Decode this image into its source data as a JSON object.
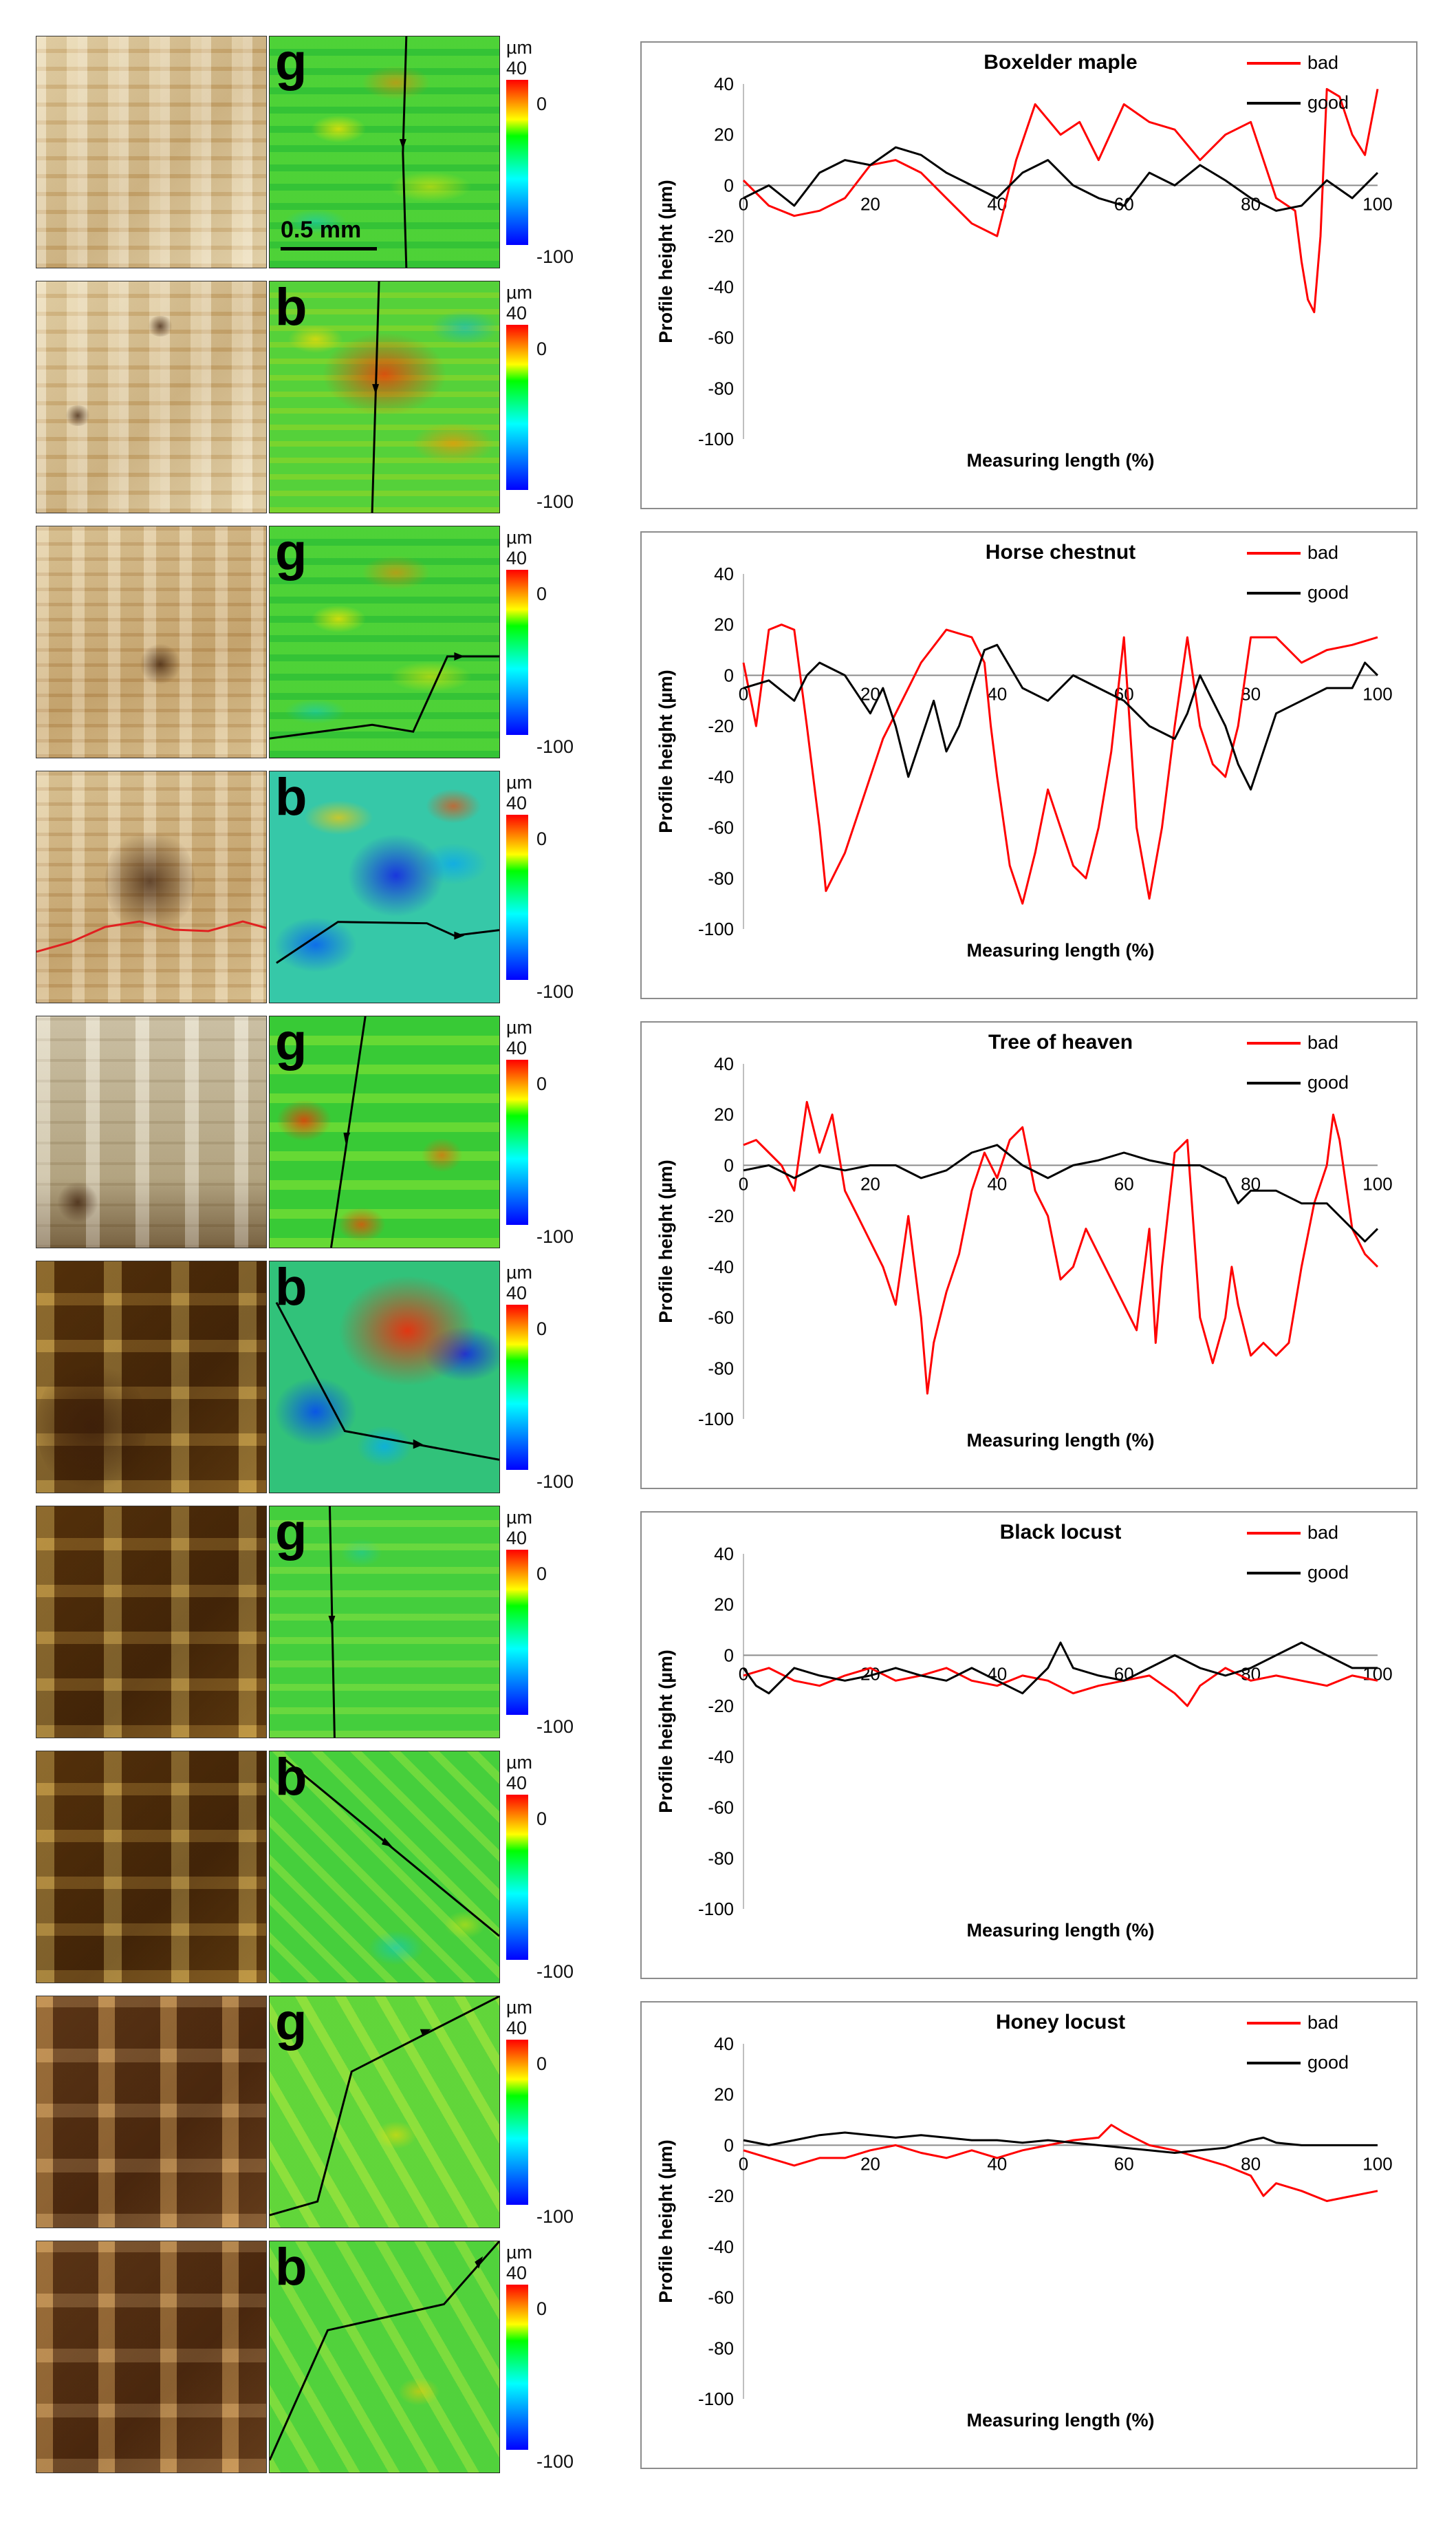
{
  "figure": {
    "scalebar_label": "0.5 mm",
    "colorbar": {
      "unit": "µm",
      "max": "40",
      "zero": "0",
      "min": "-100"
    },
    "panels": [
      {
        "letter": "g"
      },
      {
        "letter": "b"
      },
      {
        "letter": "g"
      },
      {
        "letter": "b"
      },
      {
        "letter": "g"
      },
      {
        "letter": "b"
      },
      {
        "letter": "g"
      },
      {
        "letter": "b"
      },
      {
        "letter": "g"
      },
      {
        "letter": "b"
      }
    ]
  },
  "colors": {
    "bad": "#ff0000",
    "good": "#000000"
  },
  "chart_data": [
    {
      "type": "line",
      "title": "Boxelder maple",
      "xlabel": "Measuring length (%)",
      "ylabel": "Profile height (µm)",
      "xlim": [
        0,
        100
      ],
      "ylim": [
        -100,
        40
      ],
      "xticks": [
        0,
        20,
        40,
        60,
        80,
        100
      ],
      "yticks": [
        40,
        20,
        0,
        -20,
        -40,
        -60,
        -80,
        -100
      ],
      "series": [
        {
          "name": "bad",
          "x": [
            0,
            4,
            8,
            12,
            16,
            20,
            24,
            28,
            32,
            36,
            40,
            43,
            46,
            50,
            53,
            56,
            60,
            64,
            68,
            72,
            76,
            80,
            84,
            87,
            88,
            89,
            90,
            91,
            92,
            94,
            96,
            98,
            100
          ],
          "y": [
            2,
            -8,
            -12,
            -10,
            -5,
            8,
            10,
            5,
            -5,
            -15,
            -20,
            10,
            32,
            20,
            25,
            10,
            32,
            25,
            22,
            10,
            20,
            25,
            -5,
            -10,
            -30,
            -45,
            -50,
            -20,
            38,
            35,
            20,
            12,
            38
          ]
        },
        {
          "name": "good",
          "x": [
            0,
            4,
            8,
            12,
            16,
            20,
            24,
            28,
            32,
            36,
            40,
            44,
            48,
            52,
            56,
            60,
            64,
            68,
            72,
            76,
            80,
            84,
            88,
            92,
            96,
            100
          ],
          "y": [
            -5,
            0,
            -8,
            5,
            10,
            8,
            15,
            12,
            5,
            0,
            -5,
            5,
            10,
            0,
            -5,
            -8,
            5,
            0,
            8,
            2,
            -5,
            -10,
            -8,
            2,
            -5,
            5
          ]
        }
      ]
    },
    {
      "type": "line",
      "title": "Horse chestnut",
      "xlabel": "Measuring length (%)",
      "ylabel": "Profile height (µm)",
      "xlim": [
        0,
        100
      ],
      "ylim": [
        -100,
        40
      ],
      "xticks": [
        0,
        20,
        40,
        60,
        80,
        100
      ],
      "yticks": [
        40,
        20,
        0,
        -20,
        -40,
        -60,
        -80,
        -100
      ],
      "series": [
        {
          "name": "bad",
          "x": [
            0,
            2,
            4,
            6,
            8,
            10,
            12,
            13,
            14,
            16,
            18,
            20,
            22,
            24,
            26,
            28,
            32,
            36,
            38,
            39,
            40,
            42,
            44,
            46,
            48,
            50,
            52,
            54,
            56,
            58,
            60,
            62,
            64,
            66,
            68,
            70,
            72,
            74,
            76,
            78,
            80,
            84,
            88,
            92,
            96,
            100
          ],
          "y": [
            5,
            -20,
            18,
            20,
            18,
            -20,
            -60,
            -85,
            -80,
            -70,
            -55,
            -40,
            -25,
            -15,
            -5,
            5,
            18,
            15,
            5,
            -20,
            -40,
            -75,
            -90,
            -70,
            -45,
            -60,
            -75,
            -80,
            -60,
            -30,
            15,
            -60,
            -88,
            -60,
            -20,
            15,
            -20,
            -35,
            -40,
            -20,
            15,
            15,
            5,
            10,
            12,
            15
          ]
        },
        {
          "name": "good",
          "x": [
            0,
            4,
            8,
            10,
            12,
            16,
            20,
            22,
            24,
            26,
            28,
            30,
            32,
            34,
            36,
            38,
            40,
            44,
            48,
            52,
            56,
            60,
            64,
            68,
            70,
            72,
            76,
            78,
            80,
            82,
            84,
            88,
            92,
            96,
            98,
            100
          ],
          "y": [
            -5,
            -2,
            -10,
            0,
            5,
            0,
            -15,
            -5,
            -20,
            -40,
            -25,
            -10,
            -30,
            -20,
            -5,
            10,
            12,
            -5,
            -10,
            0,
            -5,
            -10,
            -20,
            -25,
            -15,
            0,
            -20,
            -35,
            -45,
            -30,
            -15,
            -10,
            -5,
            -5,
            5,
            0
          ]
        }
      ]
    },
    {
      "type": "line",
      "title": "Tree of heaven",
      "xlabel": "Measuring length (%)",
      "ylabel": "Profile height (µm)",
      "xlim": [
        0,
        100
      ],
      "ylim": [
        -100,
        40
      ],
      "xticks": [
        0,
        20,
        40,
        60,
        80,
        100
      ],
      "yticks": [
        40,
        20,
        0,
        -20,
        -40,
        -60,
        -80,
        -100
      ],
      "series": [
        {
          "name": "bad",
          "x": [
            0,
            2,
            4,
            6,
            8,
            10,
            12,
            14,
            16,
            18,
            20,
            22,
            24,
            26,
            28,
            29,
            30,
            32,
            34,
            36,
            38,
            40,
            42,
            44,
            46,
            48,
            50,
            52,
            54,
            56,
            58,
            60,
            62,
            64,
            65,
            66,
            68,
            70,
            72,
            74,
            76,
            77,
            78,
            80,
            82,
            84,
            86,
            88,
            90,
            92,
            93,
            94,
            96,
            98,
            100
          ],
          "y": [
            8,
            10,
            5,
            0,
            -10,
            25,
            5,
            20,
            -10,
            -20,
            -30,
            -40,
            -55,
            -20,
            -60,
            -90,
            -70,
            -50,
            -35,
            -10,
            5,
            -5,
            10,
            15,
            -10,
            -20,
            -45,
            -40,
            -25,
            -35,
            -45,
            -55,
            -65,
            -25,
            -70,
            -40,
            5,
            10,
            -60,
            -78,
            -60,
            -40,
            -55,
            -75,
            -70,
            -75,
            -70,
            -40,
            -15,
            0,
            20,
            10,
            -25,
            -35,
            -40
          ]
        },
        {
          "name": "good",
          "x": [
            0,
            4,
            8,
            12,
            16,
            20,
            24,
            28,
            32,
            36,
            40,
            44,
            48,
            52,
            56,
            60,
            64,
            68,
            72,
            76,
            78,
            80,
            84,
            88,
            92,
            96,
            98,
            100
          ],
          "y": [
            -2,
            0,
            -5,
            0,
            -2,
            0,
            0,
            -5,
            -2,
            5,
            8,
            0,
            -5,
            0,
            2,
            5,
            2,
            0,
            0,
            -5,
            -15,
            -10,
            -10,
            -15,
            -15,
            -25,
            -30,
            -25
          ]
        }
      ]
    },
    {
      "type": "line",
      "title": "Black locust",
      "xlabel": "Measuring length (%)",
      "ylabel": "Profile height (µm)",
      "xlim": [
        0,
        100
      ],
      "ylim": [
        -100,
        40
      ],
      "xticks": [
        0,
        20,
        40,
        60,
        80,
        100
      ],
      "yticks": [
        40,
        20,
        0,
        -20,
        -40,
        -60,
        -80,
        -100
      ],
      "series": [
        {
          "name": "bad",
          "x": [
            0,
            4,
            8,
            12,
            16,
            20,
            24,
            28,
            32,
            36,
            40,
            44,
            48,
            52,
            56,
            60,
            64,
            68,
            70,
            72,
            76,
            80,
            84,
            88,
            92,
            96,
            100
          ],
          "y": [
            -8,
            -5,
            -10,
            -12,
            -8,
            -5,
            -10,
            -8,
            -5,
            -10,
            -12,
            -8,
            -10,
            -15,
            -12,
            -10,
            -8,
            -15,
            -20,
            -12,
            -5,
            -10,
            -8,
            -10,
            -12,
            -8,
            -10
          ]
        },
        {
          "name": "good",
          "x": [
            0,
            2,
            4,
            8,
            12,
            16,
            20,
            24,
            28,
            32,
            36,
            40,
            44,
            48,
            50,
            52,
            56,
            60,
            64,
            68,
            72,
            76,
            80,
            84,
            88,
            92,
            96,
            100
          ],
          "y": [
            -5,
            -12,
            -15,
            -5,
            -8,
            -10,
            -8,
            -5,
            -8,
            -10,
            -5,
            -10,
            -15,
            -5,
            5,
            -5,
            -8,
            -10,
            -5,
            0,
            -5,
            -8,
            -5,
            0,
            5,
            0,
            -5,
            -5
          ]
        }
      ]
    },
    {
      "type": "line",
      "title": "Honey locust",
      "xlabel": "Measuring length (%)",
      "ylabel": "Profile height (µm)",
      "xlim": [
        0,
        100
      ],
      "ylim": [
        -100,
        40
      ],
      "xticks": [
        0,
        20,
        40,
        60,
        80,
        100
      ],
      "yticks": [
        40,
        20,
        0,
        -20,
        -40,
        -60,
        -80,
        -100
      ],
      "series": [
        {
          "name": "bad",
          "x": [
            0,
            4,
            8,
            12,
            16,
            20,
            24,
            28,
            32,
            36,
            40,
            44,
            48,
            52,
            56,
            58,
            60,
            64,
            68,
            72,
            76,
            80,
            82,
            84,
            88,
            92,
            96,
            100
          ],
          "y": [
            -2,
            -5,
            -8,
            -5,
            -5,
            -2,
            0,
            -3,
            -5,
            -2,
            -5,
            -2,
            0,
            2,
            3,
            8,
            5,
            0,
            -2,
            -5,
            -8,
            -12,
            -20,
            -15,
            -18,
            -22,
            -20,
            -18
          ]
        },
        {
          "name": "good",
          "x": [
            0,
            4,
            8,
            12,
            16,
            20,
            24,
            28,
            32,
            36,
            40,
            44,
            48,
            52,
            56,
            60,
            64,
            68,
            72,
            76,
            80,
            82,
            84,
            88,
            92,
            96,
            100
          ],
          "y": [
            2,
            0,
            2,
            4,
            5,
            4,
            3,
            4,
            3,
            2,
            2,
            1,
            2,
            1,
            0,
            -1,
            -2,
            -3,
            -2,
            -1,
            2,
            3,
            1,
            0,
            0,
            0,
            0
          ]
        }
      ]
    }
  ]
}
